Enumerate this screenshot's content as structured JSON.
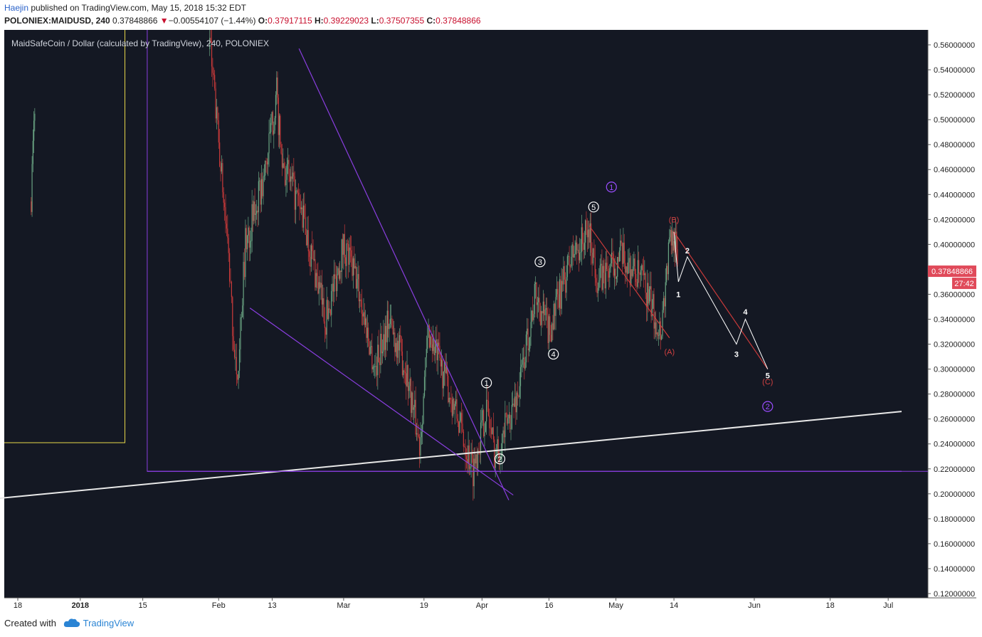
{
  "header": {
    "author": "Haejin",
    "published": " published on TradingView.com, May 15, 2018 15:32 EDT",
    "symbol": "POLONIEX:MAIDUSD, 240",
    "last": "0.37848866",
    "change_arrow": "▼",
    "change": "−0.00554107 (−1.44%)",
    "o_label": "O:",
    "o_value": "0.37917115",
    "h_label": "H:",
    "h_value": "0.39229023",
    "l_label": "L:",
    "l_value": "0.37507355",
    "c_label": "C:",
    "c_value": "0.37848866"
  },
  "footer": {
    "created_with": "Created with",
    "brand": "TradingView"
  },
  "colors": {
    "background": "#141823",
    "up": "#6aa583",
    "down": "#c93a3a",
    "price_tag": "#e04a5a",
    "purple": "#8a3ee0",
    "yellow": "#e8d84a",
    "white_line": "#e8e8e8",
    "axis_text": "#222222"
  },
  "chart_data": {
    "type": "candlestick",
    "title": "MaidSafeCoin / Dollar (calculated by TradingView), 240, POLONIEX",
    "ylim": [
      0.12,
      0.57
    ],
    "y_ticks": [
      "0.56000000",
      "0.54000000",
      "0.52000000",
      "0.50000000",
      "0.48000000",
      "0.46000000",
      "0.44000000",
      "0.42000000",
      "0.40000000",
      "0.38000000",
      "0.36000000",
      "0.34000000",
      "0.32000000",
      "0.30000000",
      "0.28000000",
      "0.26000000",
      "0.24000000",
      "0.22000000",
      "0.20000000",
      "0.18000000",
      "0.16000000",
      "0.14000000",
      "0.12000000"
    ],
    "x_ticks": [
      "18",
      "2018",
      "15",
      "Feb",
      "13",
      "Mar",
      "19",
      "Apr",
      "16",
      "May",
      "14",
      "Jun",
      "18",
      "Jul"
    ],
    "x_tick_dates": [
      "2017-12-18",
      "2018-01-01",
      "2018-01-15",
      "2018-02-01",
      "2018-02-13",
      "2018-03-01",
      "2018-03-19",
      "2018-04-01",
      "2018-04-16",
      "2018-05-01",
      "2018-05-14",
      "2018-06-01",
      "2018-06-18",
      "2018-07-01"
    ],
    "last_price": "0.37848866",
    "countdown": "27:42",
    "price_path": [
      [
        "2017-12-21",
        0.44
      ],
      [
        "2017-12-22",
        0.53
      ],
      [
        "2018-01-30",
        0.56
      ],
      [
        "2018-02-01",
        0.48
      ],
      [
        "2018-02-03",
        0.4
      ],
      [
        "2018-02-05",
        0.285
      ],
      [
        "2018-02-07",
        0.4
      ],
      [
        "2018-02-11",
        0.45
      ],
      [
        "2018-02-14",
        0.52
      ],
      [
        "2018-02-15",
        0.47
      ],
      [
        "2018-02-20",
        0.42
      ],
      [
        "2018-02-25",
        0.34
      ],
      [
        "2018-03-01",
        0.4
      ],
      [
        "2018-03-04",
        0.37
      ],
      [
        "2018-03-08",
        0.3
      ],
      [
        "2018-03-11",
        0.34
      ],
      [
        "2018-03-15",
        0.3
      ],
      [
        "2018-03-18",
        0.24
      ],
      [
        "2018-03-20",
        0.33
      ],
      [
        "2018-03-24",
        0.29
      ],
      [
        "2018-03-30",
        0.22
      ],
      [
        "2018-04-02",
        0.27
      ],
      [
        "2018-04-04",
        0.23
      ],
      [
        "2018-04-09",
        0.28
      ],
      [
        "2018-04-13",
        0.36
      ],
      [
        "2018-04-16",
        0.33
      ],
      [
        "2018-04-21",
        0.39
      ],
      [
        "2018-04-25",
        0.41
      ],
      [
        "2018-04-27",
        0.37
      ],
      [
        "2018-05-02",
        0.39
      ],
      [
        "2018-05-07",
        0.37
      ],
      [
        "2018-05-11",
        0.33
      ],
      [
        "2018-05-13",
        0.4
      ],
      [
        "2018-05-14",
        0.41
      ],
      [
        "2018-05-15",
        0.37848866
      ]
    ],
    "projection": [
      {
        "name": "1",
        "x": "2018-05-15",
        "y": 0.37
      },
      {
        "name": "2",
        "x": "2018-05-17",
        "y": 0.39
      },
      {
        "name": "3",
        "x": "2018-05-28",
        "y": 0.32
      },
      {
        "name": "4",
        "x": "2018-05-30",
        "y": 0.34
      },
      {
        "name": "5",
        "x": "2018-06-04",
        "y": 0.3
      }
    ],
    "wave_labels": [
      {
        "text": "1",
        "style": "circle-white",
        "x": "2018-04-02",
        "y": 0.289
      },
      {
        "text": "2",
        "style": "circle-white",
        "x": "2018-04-05",
        "y": 0.228
      },
      {
        "text": "3",
        "style": "circle-white",
        "x": "2018-04-14",
        "y": 0.386
      },
      {
        "text": "4",
        "style": "circle-white",
        "x": "2018-04-17",
        "y": 0.312
      },
      {
        "text": "5",
        "style": "circle-white",
        "x": "2018-04-26",
        "y": 0.43
      },
      {
        "text": "1",
        "style": "circle-purple",
        "x": "2018-04-30",
        "y": 0.446
      },
      {
        "text": "2",
        "style": "circle-purple",
        "x": "2018-06-04",
        "y": 0.27
      },
      {
        "text": "(B)",
        "style": "red",
        "x": "2018-05-14",
        "y": 0.42
      },
      {
        "text": "(A)",
        "style": "red",
        "x": "2018-05-13",
        "y": 0.314
      },
      {
        "text": "(C)",
        "style": "red",
        "x": "2018-06-04",
        "y": 0.29
      },
      {
        "text": "1",
        "style": "white",
        "x": "2018-05-15",
        "y": 0.36
      },
      {
        "text": "2",
        "style": "white",
        "x": "2018-05-17",
        "y": 0.395
      },
      {
        "text": "3",
        "style": "white",
        "x": "2018-05-28",
        "y": 0.312
      },
      {
        "text": "4",
        "style": "white",
        "x": "2018-05-30",
        "y": 0.346
      },
      {
        "text": "5",
        "style": "white",
        "x": "2018-06-04",
        "y": 0.295
      }
    ],
    "trendlines": [
      {
        "name": "support",
        "color": "white",
        "x1": "2017-12-04",
        "y1": 0.193,
        "x2": "2018-07-04",
        "y2": 0.266
      },
      {
        "name": "wedge-upper",
        "color": "purple",
        "x1": "2018-02-19",
        "y1": 0.557,
        "x2": "2018-04-07",
        "y2": 0.195
      },
      {
        "name": "wedge-lower",
        "color": "purple",
        "x1": "2018-02-08",
        "y1": 0.349,
        "x2": "2018-04-08",
        "y2": 0.199
      },
      {
        "name": "horizontal",
        "color": "purple",
        "x1": "2018-01-16",
        "y1": 0.218,
        "x2": "2018-07-04",
        "y2": 0.218
      },
      {
        "name": "abc-b-c",
        "color": "red",
        "x1": "2018-05-14",
        "y1": 0.41,
        "x2": "2018-06-04",
        "y2": 0.3
      },
      {
        "name": "abc-5-a",
        "color": "red",
        "x1": "2018-04-25",
        "y1": 0.415,
        "x2": "2018-05-13",
        "y2": 0.325
      }
    ],
    "boxes": [
      {
        "name": "yellow-box",
        "color": "yellow",
        "x_end": "2018-01-11",
        "y_bottom": 0.241
      },
      {
        "name": "purple-box",
        "color": "purple",
        "x_start": "2018-01-16",
        "y_bottom": 0.218
      }
    ]
  }
}
